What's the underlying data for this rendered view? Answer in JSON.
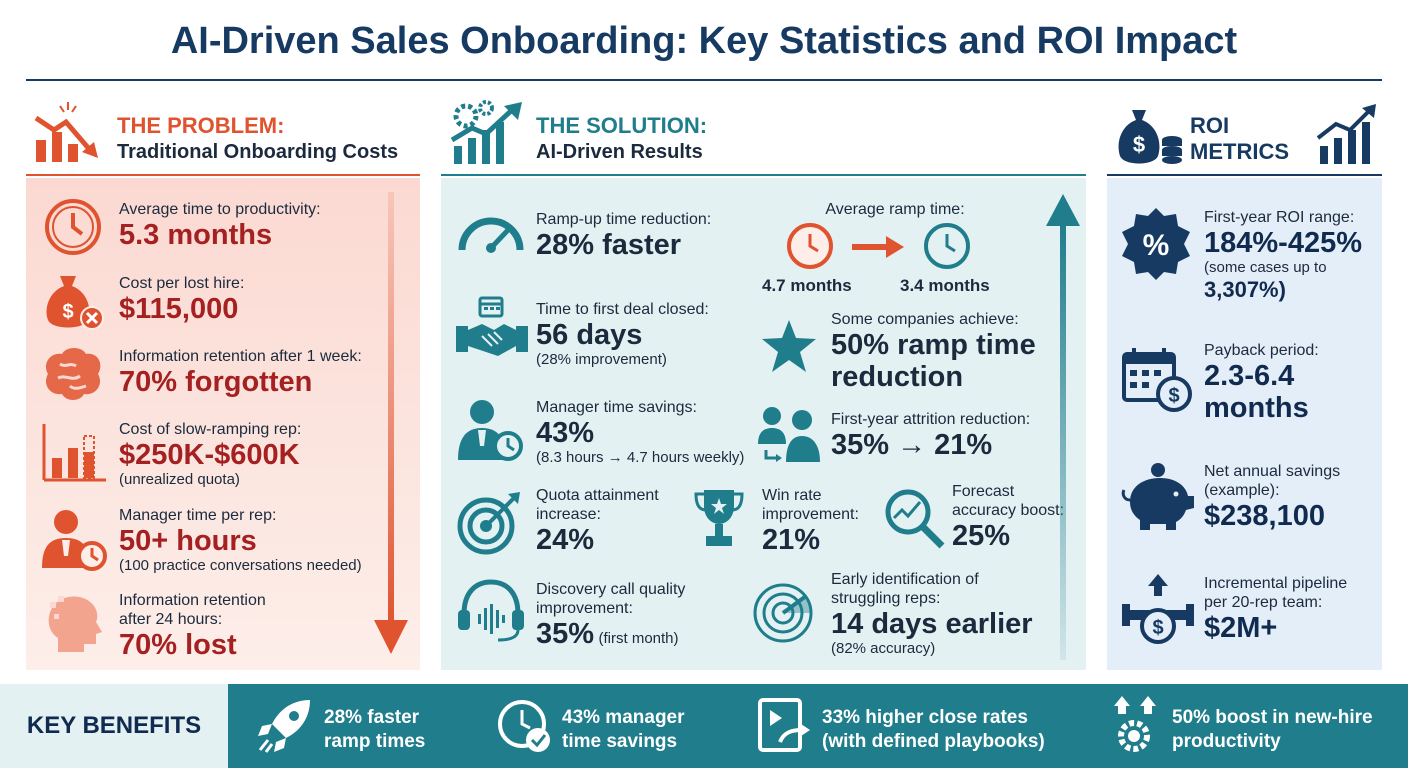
{
  "title": "AI-Driven Sales Onboarding: Key Statistics and ROI Impact",
  "problem": {
    "heading": "THE PROBLEM:",
    "subheading": "Traditional Onboarding Costs",
    "items": [
      {
        "label": "Average time to productivity:",
        "value": "5.3 months",
        "note": ""
      },
      {
        "label": "Cost per lost hire:",
        "value": "$115,000",
        "note": ""
      },
      {
        "label": "Information retention after 1 week:",
        "value": "70% forgotten",
        "note": ""
      },
      {
        "label": "Cost of slow-ramping rep:",
        "value": "$250K-$600K",
        "note": "(unrealized quota)"
      },
      {
        "label": "Manager time per rep:",
        "value": "50+ hours",
        "note": "(100 practice conversations needed)"
      },
      {
        "label": "Information retention",
        "label2": "after 24 hours:",
        "value": "70% lost",
        "note": ""
      }
    ]
  },
  "solution": {
    "heading": "THE SOLUTION:",
    "subheading": "AI-Driven Results",
    "ramp": {
      "label": "Ramp-up time reduction:",
      "value": "28% faster"
    },
    "avg_ramp": {
      "label": "Average ramp time:",
      "before": "4.7 months",
      "after": "3.4 months"
    },
    "first_deal": {
      "label": "Time to first deal closed:",
      "value": "56 days",
      "note": "(28% improvement)"
    },
    "some_companies": {
      "label": "Some companies achieve:",
      "value1": "50% ramp time",
      "value2": "reduction"
    },
    "manager": {
      "label": "Manager time savings:",
      "value": "43%",
      "note": "(8.3 hours → 4.7 hours weekly)"
    },
    "attrition": {
      "label": "First-year attrition reduction:",
      "value": "35% → 21%"
    },
    "quota": {
      "label1": "Quota attainment",
      "label2": "increase:",
      "value": "24%"
    },
    "winrate": {
      "label1": "Win rate",
      "label2": "improvement:",
      "value": "21%"
    },
    "forecast": {
      "label1": "Forecast",
      "label2": "accuracy boost:",
      "value": "25%"
    },
    "discovery": {
      "label1": "Discovery call quality",
      "label2": "improvement:",
      "value": "35%",
      "note": "(first month)"
    },
    "early": {
      "label1": "Early identification of",
      "label2": "struggling reps:",
      "value": "14 days earlier",
      "note": "(82% accuracy)"
    }
  },
  "roi": {
    "heading1": "ROI",
    "heading2": "METRICS",
    "items": [
      {
        "label": "First-year ROI range:",
        "value": "184%-425%",
        "note1": "(some cases up to",
        "note2": "3,307%)"
      },
      {
        "label": "Payback period:",
        "value1": "2.3-6.4",
        "value2": "months"
      },
      {
        "label1": "Net annual savings",
        "label2": "(example):",
        "value": "$238,100"
      },
      {
        "label1": "Incremental pipeline",
        "label2": "per 20-rep team:",
        "value": "$2M+"
      }
    ]
  },
  "benefits": {
    "label": "KEY BENEFITS",
    "items": [
      {
        "line1": "28% faster",
        "line2": "ramp times"
      },
      {
        "line1": "43% manager",
        "line2": "time savings"
      },
      {
        "line1": "33% higher close rates",
        "line2": "(with defined playbooks)"
      },
      {
        "line1": "50% boost in new-hire",
        "line2": "productivity"
      }
    ]
  },
  "colors": {
    "problem": "#e0532f",
    "solution": "#1f7d8c",
    "roi": "#173a63",
    "value_red": "#a52020"
  }
}
